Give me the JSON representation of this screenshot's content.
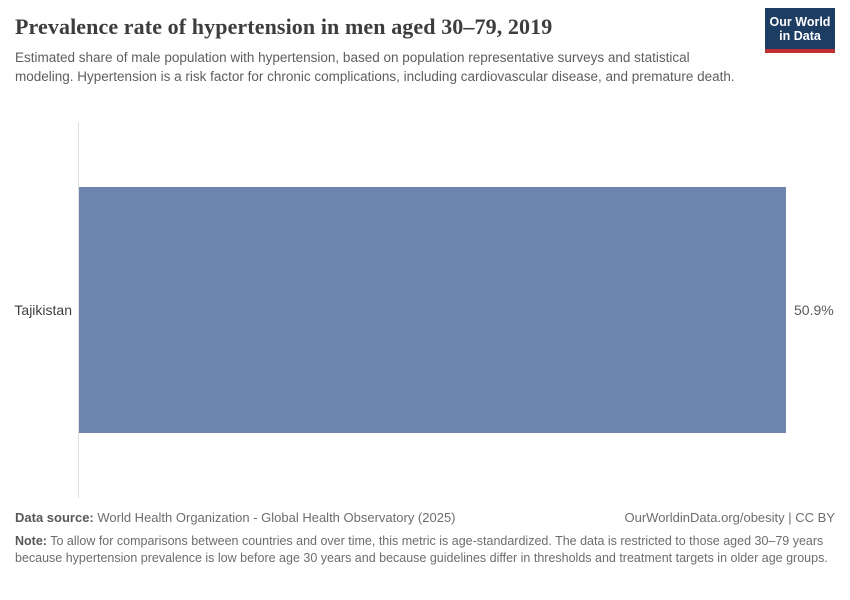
{
  "header": {
    "title": "Prevalence rate of hypertension in men aged 30–79, 2019",
    "subtitle": "Estimated share of male population with hypertension, based on population representative surveys and statistical modeling. Hypertension is a risk factor for chronic complications, including cardiovascular disease, and premature death.",
    "logo": {
      "line1": "Our World",
      "line2": "in Data",
      "bg_color": "#1d3d63",
      "accent_color": "#c22e35"
    }
  },
  "chart_data": {
    "type": "bar",
    "orientation": "horizontal",
    "categories": [
      "Tajikistan"
    ],
    "values": [
      50.9
    ],
    "value_labels": [
      "50.9%"
    ],
    "title": "Prevalence rate of hypertension in men aged 30–79, 2019",
    "xlabel": "",
    "ylabel": "",
    "xlim": [
      0,
      50.9
    ],
    "unit": "%",
    "bar_color": "#6e85ad",
    "axis_line_color": "#dedede",
    "grid": false,
    "legend": false
  },
  "footer": {
    "datasource_label": "Data source:",
    "datasource_value": " World Health Organization - Global Health Observatory (2025)",
    "attribution": "OurWorldinData.org/obesity | CC BY",
    "note_label": "Note:",
    "note_text": " To allow for comparisons between countries and over time, this metric is age-standardized. The data is restricted to those aged 30–79 years because hypertension prevalence is low before age 30 years and because guidelines differ in thresholds and treatment targets in older age groups."
  }
}
